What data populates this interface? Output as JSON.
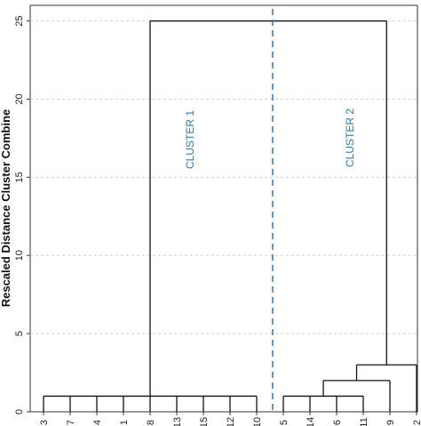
{
  "chart_data": {
    "type": "dendrogram",
    "ylabel": "Rescaled Distance Cluster Combine",
    "ylim": [
      0,
      26
    ],
    "yticks": [
      0,
      5,
      10,
      15,
      20,
      25
    ],
    "grid": "horizontal dashed",
    "leaves": [
      "3",
      "7",
      "4",
      "1",
      "8",
      "13",
      "15",
      "12",
      "10",
      "5",
      "14",
      "6",
      "11",
      "9",
      "2"
    ],
    "merges": [
      {
        "id": "A",
        "children": [
          "3",
          "7",
          "4",
          "1",
          "8",
          "13",
          "15",
          "12",
          "10"
        ],
        "height": 1
      },
      {
        "id": "B",
        "children": [
          "5",
          "14",
          "6",
          "11"
        ],
        "height": 1
      },
      {
        "id": "C",
        "children": [
          "B",
          "9"
        ],
        "height": 2
      },
      {
        "id": "D",
        "children": [
          "C",
          "2"
        ],
        "height": 3
      },
      {
        "id": "E",
        "children": [
          "A",
          "D"
        ],
        "height": 25
      }
    ],
    "cut": {
      "between": [
        "10",
        "5"
      ],
      "color": "#2a7ab8"
    },
    "clusters": [
      "CLUSTER 1",
      "CLUSTER 2"
    ]
  }
}
